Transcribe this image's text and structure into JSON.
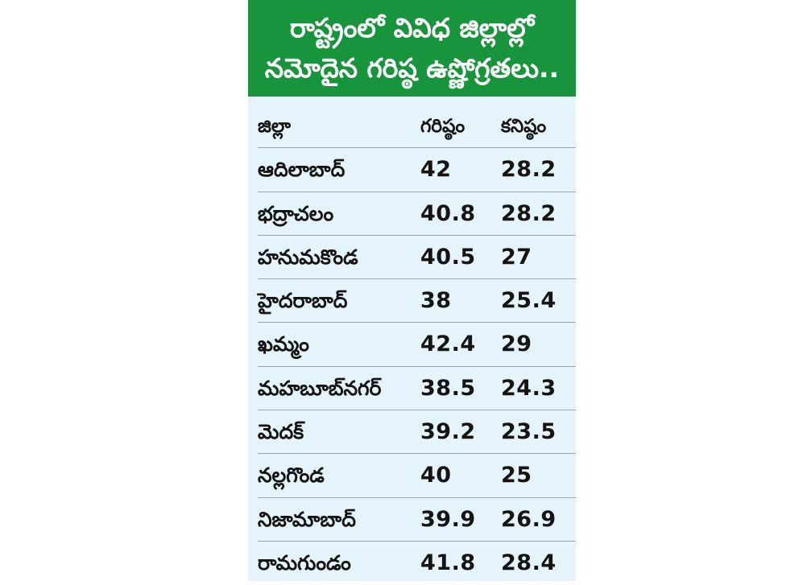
{
  "title": {
    "line1": "రాష్ట్రంలో వివిధ జిల్లాల్లో",
    "line2": "నమోదైన గరిష్ఠ ఉష్ణోగ్రతలు.."
  },
  "table": {
    "headers": [
      "జిల్లా",
      "గరిష్ఠం",
      "కనిష్ఠం"
    ],
    "rows": [
      [
        "ఆదిలాబాద్",
        "42",
        "28.2"
      ],
      [
        "భద్రాచలం",
        "40.8",
        "28.2"
      ],
      [
        "హనుమకొండ",
        "40.5",
        "27"
      ],
      [
        "హైదరాబాద్",
        "38",
        "25.4"
      ],
      [
        "ఖమ్మం",
        "42.4",
        "29"
      ],
      [
        "మహబూబ్‌నగర్",
        "38.5",
        "24.3"
      ],
      [
        "మెదక్",
        "39.2",
        "23.5"
      ],
      [
        "నల్లగొండ",
        "40",
        "25"
      ],
      [
        "నిజామాబాద్",
        "39.9",
        "26.9"
      ],
      [
        "రామగుండం",
        "41.8",
        "28.4"
      ]
    ]
  },
  "colors": {
    "header_bg": "#17943c",
    "card_bg": "#e5f3fa",
    "text": "#141414"
  }
}
